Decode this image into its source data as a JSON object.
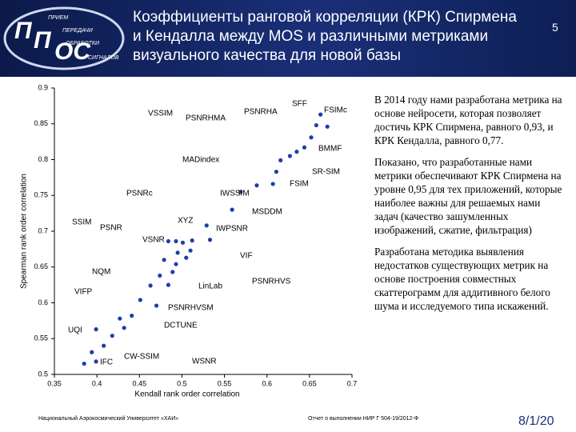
{
  "header": {
    "title": [
      "Коэффициенты ранговой корреляции (КРК) Спирмена",
      "и Кендалла между MOS и различными метриками",
      "визуального качества для новой базы"
    ],
    "page": "5",
    "logo": {
      "big1": "П",
      "big2": "П",
      "big3": "ОС",
      "words": [
        "ПРИЕМ",
        "ПЕРЕДАЧИ",
        "ОБРАБОТКИ",
        "СИГНАЛОВ"
      ]
    }
  },
  "chart_data": {
    "type": "scatter",
    "xlabel": "Kendall rank order correlation",
    "ylabel": "Spearman rank order correlation",
    "color": "#1f3ea8",
    "xlim": [
      0.35,
      0.7
    ],
    "xticks": [
      0.35,
      0.4,
      0.45,
      0.5,
      0.55,
      0.6,
      0.65,
      0.7
    ],
    "ylim": [
      0.5,
      0.9
    ],
    "yticks": [
      0.5,
      0.55,
      0.6,
      0.65,
      0.7,
      0.75,
      0.8,
      0.85,
      0.9
    ],
    "x": [
      0.663,
      0.671,
      0.658,
      0.652,
      0.644,
      0.635,
      0.627,
      0.616,
      0.611,
      0.607,
      0.588,
      0.569,
      0.559,
      0.529,
      0.533,
      0.512,
      0.501,
      0.493,
      0.484,
      0.51,
      0.495,
      0.505,
      0.493,
      0.479,
      0.489,
      0.474,
      0.463,
      0.484,
      0.451,
      0.47,
      0.441,
      0.427,
      0.432,
      0.399,
      0.418,
      0.408,
      0.394,
      0.399,
      0.385
    ],
    "values": [
      0.863,
      0.846,
      0.848,
      0.831,
      0.817,
      0.811,
      0.805,
      0.799,
      0.783,
      0.766,
      0.764,
      0.755,
      0.73,
      0.708,
      0.688,
      0.687,
      0.684,
      0.686,
      0.686,
      0.673,
      0.67,
      0.663,
      0.654,
      0.66,
      0.643,
      0.638,
      0.624,
      0.625,
      0.604,
      0.596,
      0.582,
      0.578,
      0.565,
      0.563,
      0.554,
      0.54,
      0.531,
      0.518,
      0.515
    ],
    "annotations": [
      "SFF",
      "FSIMc",
      "BMMF",
      "SR-SIM",
      "FSIM",
      "MSDDM",
      "IWSSIM",
      "PSNRHA",
      "PSNRHMA",
      "VSSIM",
      "MADindex",
      "PSNRc",
      "XYZ",
      "IWPSNR",
      "VIF",
      "VSNR",
      "SSIM",
      "PSNR",
      "NQM",
      "LinLab",
      "PSNRHVS",
      "VIFP",
      "PSNRHVSM",
      "DCTUNE",
      "UQI",
      "IFC",
      "CW-SSIM",
      "WSNR"
    ]
  },
  "text": [
    "В 2014 году нами разработана метрика на основе нейросети, которая позволяет достичь КРК Спирмена, равного 0,93, и КРК Кендалла, равного 0,77.",
    "Показано, что разработанные нами метрики обеспечивают КРК Спирмена на уровне 0,95 для тех приложений, которые наиболее важны для решаемых нами задач (качество зашумленных изображений, сжатие, фильтрация)",
    "Разработана методика выявления недостатков существующих метрик на основе построения совместных скаттерограмм для аддитивного белого шума и исследуемого типа искажений."
  ],
  "footer": {
    "left": "Национальный Аэрокосмический Университет «ХАИ»",
    "center": "Отчет о выполнении НИР Г 504-19/2012-Ф",
    "date": "8/1/20"
  }
}
